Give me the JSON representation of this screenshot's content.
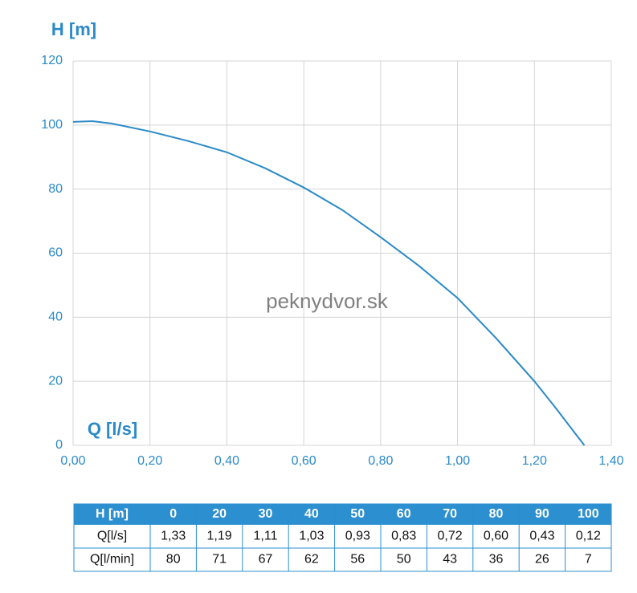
{
  "chart_data": {
    "type": "line",
    "y_label": "H [m]",
    "x_label": "Q [l/s]",
    "watermark": "peknydvor.sk",
    "x": [
      0,
      0.05,
      0.1,
      0.2,
      0.3,
      0.4,
      0.5,
      0.6,
      0.7,
      0.8,
      0.9,
      1.0,
      1.1,
      1.2,
      1.25,
      1.33
    ],
    "values": [
      101,
      101.2,
      100.5,
      98,
      95,
      91.5,
      86.5,
      80.5,
      73.5,
      65,
      56,
      46,
      33.5,
      20,
      12.5,
      0
    ],
    "color": "#2a8ac8",
    "xlim": [
      0,
      1.4
    ],
    "xticks": [
      {
        "value": 0,
        "label": "0,00"
      },
      {
        "value": 0.2,
        "label": "0,20"
      },
      {
        "value": 0.4,
        "label": "0,40"
      },
      {
        "value": 0.6,
        "label": "0,60"
      },
      {
        "value": 0.8,
        "label": "0,80"
      },
      {
        "value": 1.0,
        "label": "1,00"
      },
      {
        "value": 1.2,
        "label": "1,20"
      },
      {
        "value": 1.4,
        "label": "1,40"
      }
    ],
    "ylim": [
      0,
      120
    ],
    "yticks": [
      0,
      20,
      40,
      60,
      80,
      100,
      120
    ],
    "grid": true
  },
  "table": {
    "header": [
      "H [m]",
      "0",
      "20",
      "30",
      "40",
      "50",
      "60",
      "70",
      "80",
      "90",
      "100"
    ],
    "rows": [
      [
        "Q[l/s]",
        "1,33",
        "1,19",
        "1,11",
        "1,03",
        "0,93",
        "0,83",
        "0,72",
        "0,60",
        "0,43",
        "0,12"
      ],
      [
        "Q[l/min]",
        "80",
        "71",
        "67",
        "62",
        "56",
        "50",
        "43",
        "36",
        "26",
        "7"
      ]
    ]
  }
}
